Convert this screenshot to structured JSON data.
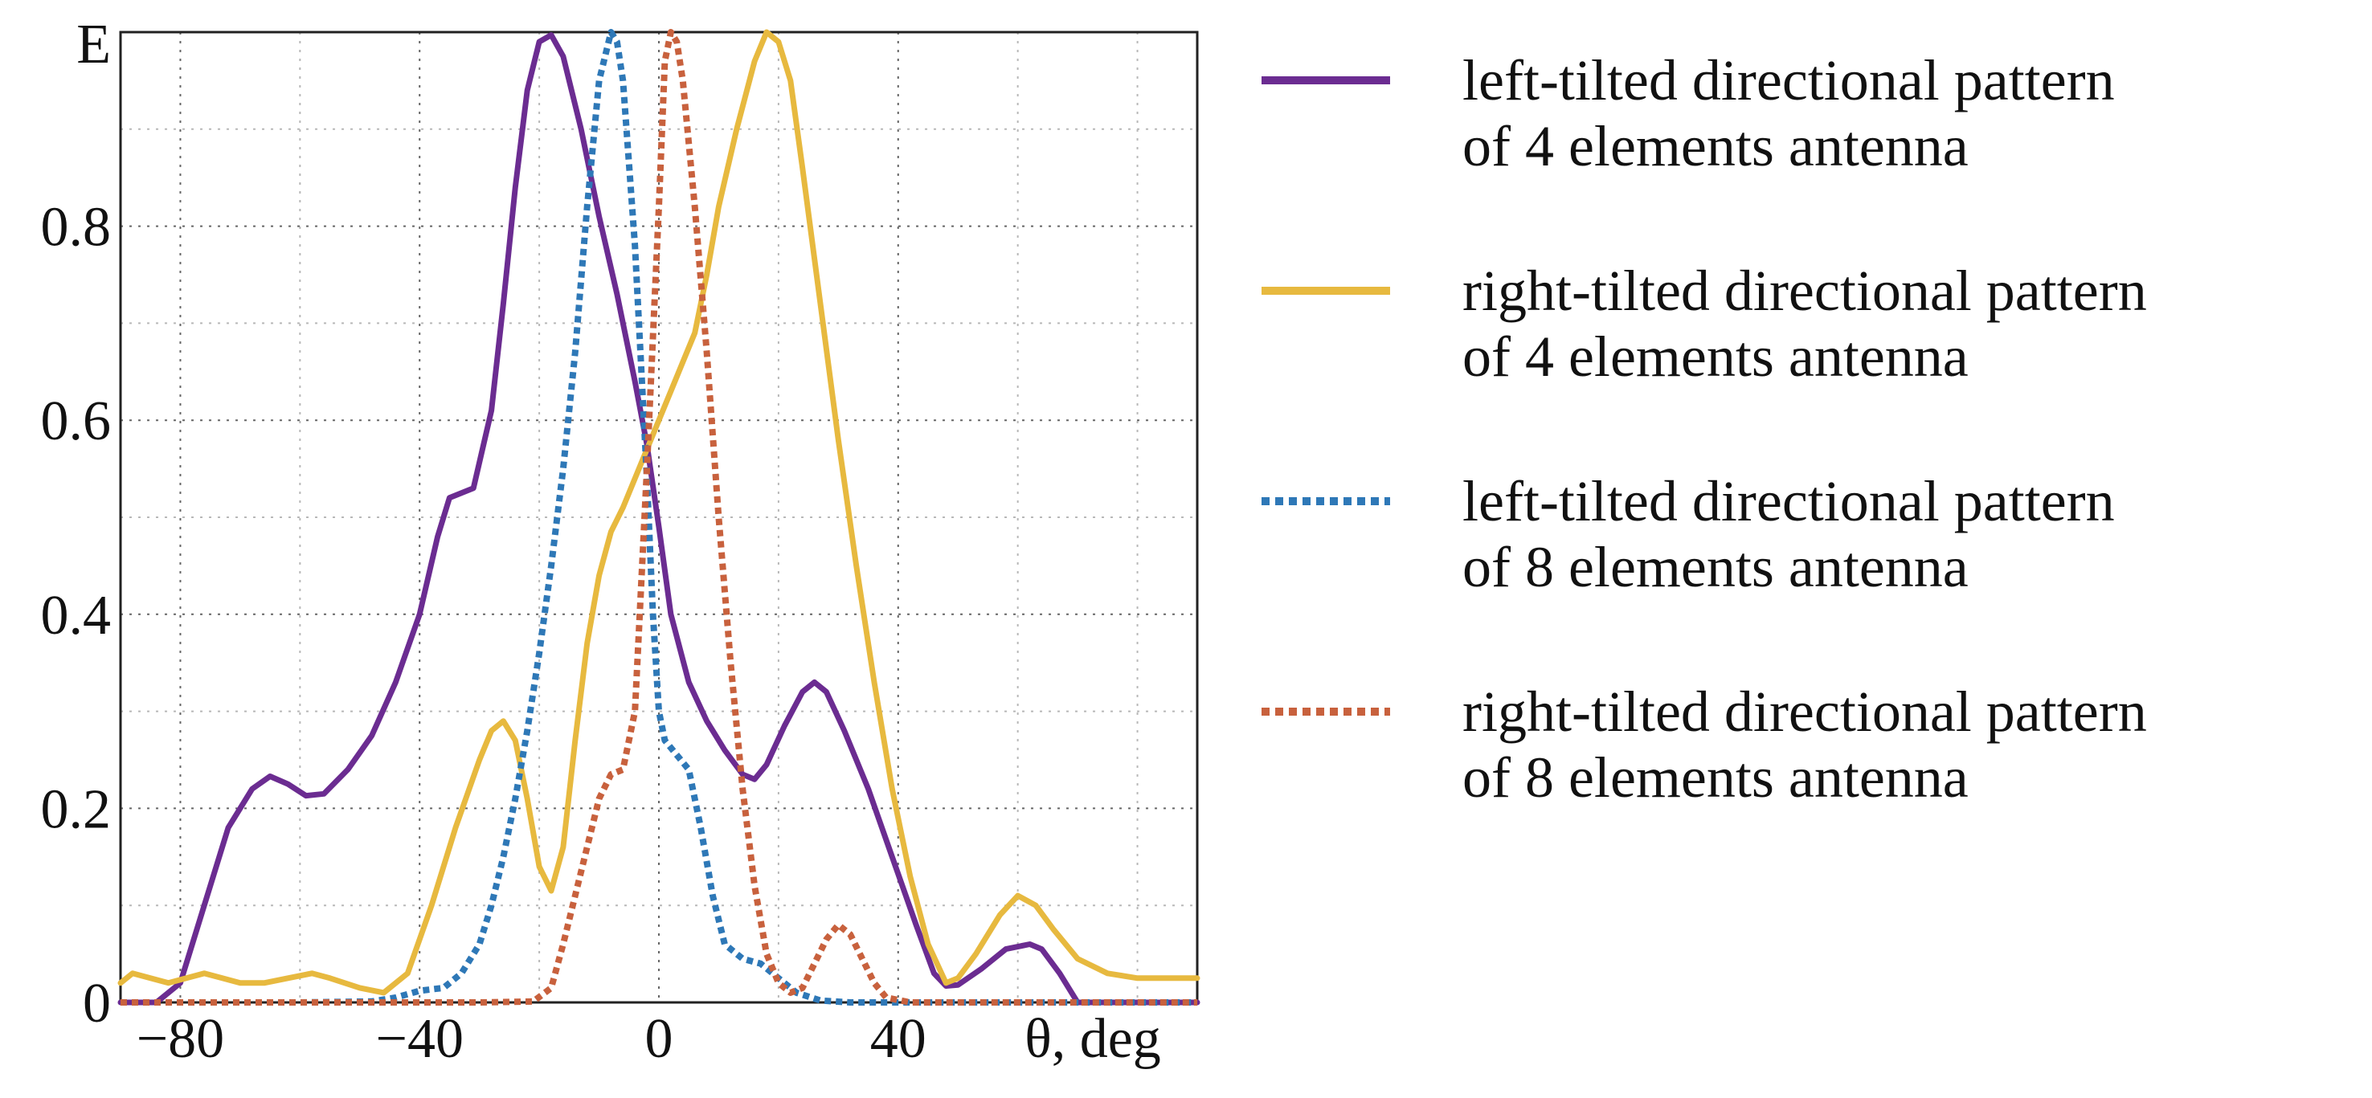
{
  "chart_data": {
    "type": "line",
    "title": "",
    "xlabel": "θ, deg",
    "ylabel": "E",
    "xlim": [
      -90,
      90
    ],
    "ylim": [
      0,
      1.0
    ],
    "x_ticks": [
      -80,
      -40,
      0,
      40
    ],
    "x_tick_labels": [
      "−80",
      "−40",
      "0",
      "40"
    ],
    "y_ticks": [
      0,
      0.2,
      0.4,
      0.6,
      0.8
    ],
    "y_tick_labels": [
      "0",
      "0.2",
      "0.4",
      "0.6",
      "0.8"
    ],
    "grid": true,
    "legend_position": "right",
    "series": [
      {
        "name": "left-tilted directional pattern of 4 elements antenna",
        "legend_lines": [
          "left-tilted directional pattern",
          "of 4 elements antenna"
        ],
        "color": "#6b2c91",
        "style": "solid",
        "points": [
          [
            -90,
            0
          ],
          [
            -84,
            0
          ],
          [
            -80,
            0.02
          ],
          [
            -76,
            0.1
          ],
          [
            -72,
            0.18
          ],
          [
            -68,
            0.22
          ],
          [
            -65,
            0.233
          ],
          [
            -62,
            0.225
          ],
          [
            -59,
            0.213
          ],
          [
            -56,
            0.215
          ],
          [
            -52,
            0.24
          ],
          [
            -48,
            0.275
          ],
          [
            -44,
            0.33
          ],
          [
            -40,
            0.4
          ],
          [
            -37,
            0.48
          ],
          [
            -35,
            0.52
          ],
          [
            -33,
            0.525
          ],
          [
            -31,
            0.53
          ],
          [
            -28,
            0.61
          ],
          [
            -26,
            0.72
          ],
          [
            -24,
            0.84
          ],
          [
            -22,
            0.94
          ],
          [
            -20,
            0.99
          ],
          [
            -18,
            0.997
          ],
          [
            -16,
            0.975
          ],
          [
            -13,
            0.9
          ],
          [
            -10,
            0.81
          ],
          [
            -7,
            0.73
          ],
          [
            -4,
            0.64
          ],
          [
            -2,
            0.575
          ],
          [
            0,
            0.49
          ],
          [
            2,
            0.4
          ],
          [
            5,
            0.33
          ],
          [
            8,
            0.29
          ],
          [
            11,
            0.26
          ],
          [
            14,
            0.235
          ],
          [
            16,
            0.23
          ],
          [
            18,
            0.245
          ],
          [
            21,
            0.285
          ],
          [
            24,
            0.32
          ],
          [
            26,
            0.33
          ],
          [
            28,
            0.32
          ],
          [
            31,
            0.28
          ],
          [
            35,
            0.22
          ],
          [
            39,
            0.15
          ],
          [
            43,
            0.08
          ],
          [
            46,
            0.03
          ],
          [
            48,
            0.017
          ],
          [
            50,
            0.018
          ],
          [
            54,
            0.035
          ],
          [
            58,
            0.055
          ],
          [
            62,
            0.06
          ],
          [
            64,
            0.055
          ],
          [
            67,
            0.03
          ],
          [
            70,
            0
          ],
          [
            80,
            0
          ],
          [
            90,
            0
          ]
        ]
      },
      {
        "name": "right-tilted directional pattern of 4 elements antenna",
        "legend_lines": [
          "right-tilted directional pattern",
          "of 4 elements antenna"
        ],
        "color": "#e7b93f",
        "style": "solid",
        "points": [
          [
            -90,
            0.02
          ],
          [
            -88,
            0.03
          ],
          [
            -85,
            0.025
          ],
          [
            -82,
            0.02
          ],
          [
            -79,
            0.025
          ],
          [
            -76,
            0.03
          ],
          [
            -73,
            0.025
          ],
          [
            -70,
            0.02
          ],
          [
            -66,
            0.02
          ],
          [
            -62,
            0.025
          ],
          [
            -58,
            0.03
          ],
          [
            -55,
            0.025
          ],
          [
            -50,
            0.015
          ],
          [
            -46,
            0.01
          ],
          [
            -42,
            0.03
          ],
          [
            -38,
            0.1
          ],
          [
            -34,
            0.18
          ],
          [
            -30,
            0.25
          ],
          [
            -28,
            0.28
          ],
          [
            -26,
            0.29
          ],
          [
            -24,
            0.27
          ],
          [
            -22,
            0.21
          ],
          [
            -20,
            0.14
          ],
          [
            -18,
            0.115
          ],
          [
            -16,
            0.16
          ],
          [
            -14,
            0.27
          ],
          [
            -12,
            0.37
          ],
          [
            -10,
            0.44
          ],
          [
            -8,
            0.485
          ],
          [
            -6,
            0.51
          ],
          [
            -4,
            0.54
          ],
          [
            -2,
            0.57
          ],
          [
            0,
            0.6
          ],
          [
            2,
            0.63
          ],
          [
            4,
            0.66
          ],
          [
            6,
            0.69
          ],
          [
            8,
            0.75
          ],
          [
            10,
            0.82
          ],
          [
            13,
            0.9
          ],
          [
            16,
            0.97
          ],
          [
            18,
            1.0
          ],
          [
            20,
            0.99
          ],
          [
            22,
            0.95
          ],
          [
            24,
            0.86
          ],
          [
            27,
            0.72
          ],
          [
            30,
            0.58
          ],
          [
            33,
            0.45
          ],
          [
            36,
            0.33
          ],
          [
            39,
            0.22
          ],
          [
            42,
            0.13
          ],
          [
            45,
            0.06
          ],
          [
            48,
            0.02
          ],
          [
            50,
            0.025
          ],
          [
            53,
            0.05
          ],
          [
            57,
            0.09
          ],
          [
            60,
            0.11
          ],
          [
            63,
            0.1
          ],
          [
            66,
            0.075
          ],
          [
            70,
            0.045
          ],
          [
            75,
            0.03
          ],
          [
            80,
            0.025
          ],
          [
            85,
            0.025
          ],
          [
            90,
            0.025
          ]
        ]
      },
      {
        "name": "left-tilted directional pattern of 8 elements antenna",
        "legend_lines": [
          "left-tilted directional pattern",
          "of 8 elements antenna"
        ],
        "color": "#2e78b7",
        "style": "dotted",
        "points": [
          [
            -90,
            0
          ],
          [
            -80,
            0
          ],
          [
            -60,
            0
          ],
          [
            -48,
            0.001
          ],
          [
            -44,
            0.005
          ],
          [
            -40,
            0.012
          ],
          [
            -36,
            0.015
          ],
          [
            -33,
            0.03
          ],
          [
            -30,
            0.06
          ],
          [
            -28,
            0.1
          ],
          [
            -26,
            0.15
          ],
          [
            -24,
            0.21
          ],
          [
            -22,
            0.28
          ],
          [
            -20,
            0.36
          ],
          [
            -18,
            0.45
          ],
          [
            -16,
            0.55
          ],
          [
            -14,
            0.67
          ],
          [
            -12,
            0.82
          ],
          [
            -10,
            0.95
          ],
          [
            -8,
            1.0
          ],
          [
            -7,
            0.99
          ],
          [
            -6,
            0.95
          ],
          [
            -4,
            0.78
          ],
          [
            -2,
            0.54
          ],
          [
            -1,
            0.4
          ],
          [
            0,
            0.3
          ],
          [
            1,
            0.27
          ],
          [
            3,
            0.255
          ],
          [
            5,
            0.24
          ],
          [
            7,
            0.18
          ],
          [
            9,
            0.11
          ],
          [
            11,
            0.06
          ],
          [
            14,
            0.045
          ],
          [
            17,
            0.04
          ],
          [
            20,
            0.025
          ],
          [
            23,
            0.01
          ],
          [
            27,
            0.002
          ],
          [
            32,
            0
          ],
          [
            50,
            0
          ],
          [
            90,
            0
          ]
        ]
      },
      {
        "name": "right-tilted directional pattern of 8 elements antenna",
        "legend_lines": [
          "right-tilted directional pattern",
          "of 8 elements antenna"
        ],
        "color": "#c8613d",
        "style": "dotted",
        "points": [
          [
            -90,
            0
          ],
          [
            -60,
            0
          ],
          [
            -30,
            0
          ],
          [
            -21,
            0.001
          ],
          [
            -18,
            0.015
          ],
          [
            -16,
            0.06
          ],
          [
            -14,
            0.11
          ],
          [
            -12,
            0.16
          ],
          [
            -10,
            0.21
          ],
          [
            -8,
            0.235
          ],
          [
            -6,
            0.24
          ],
          [
            -4,
            0.3
          ],
          [
            -2,
            0.55
          ],
          [
            0,
            0.82
          ],
          [
            1,
            0.97
          ],
          [
            2,
            1.0
          ],
          [
            3,
            0.99
          ],
          [
            4,
            0.95
          ],
          [
            6,
            0.82
          ],
          [
            8,
            0.67
          ],
          [
            10,
            0.5
          ],
          [
            12,
            0.35
          ],
          [
            14,
            0.22
          ],
          [
            16,
            0.12
          ],
          [
            18,
            0.05
          ],
          [
            20,
            0.02
          ],
          [
            22,
            0.01
          ],
          [
            24,
            0.015
          ],
          [
            26,
            0.04
          ],
          [
            28,
            0.065
          ],
          [
            30,
            0.08
          ],
          [
            32,
            0.07
          ],
          [
            34,
            0.045
          ],
          [
            36,
            0.02
          ],
          [
            38,
            0.005
          ],
          [
            42,
            0
          ],
          [
            90,
            0
          ]
        ]
      }
    ]
  }
}
